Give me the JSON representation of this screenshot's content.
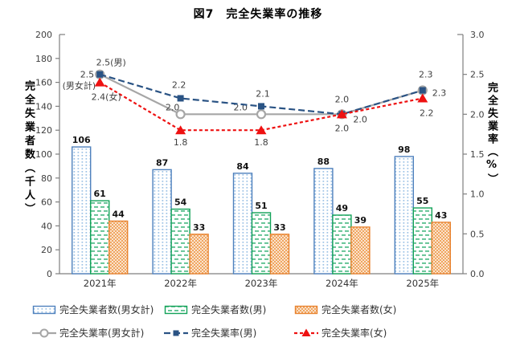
{
  "title": "図7　完全失業率の推移",
  "colors": {
    "axis": "#7f7f7f",
    "bar_total_border": "#4f81bd",
    "bar_total_fill": "#9cc2e5",
    "bar_male_border": "#12a258",
    "bar_male_fill": "#5abf8e",
    "bar_female_border": "#e8822e",
    "bar_female_fill": "#f0a158",
    "line_total": "#a6a6a6",
    "line_male": "#2a5384",
    "line_female": "#ee1111"
  },
  "chart_data": {
    "type": "bar",
    "subtype": "combo-bar-line",
    "categories": [
      "2021年",
      "2022年",
      "2023年",
      "2024年",
      "2025年"
    ],
    "bar_series": [
      {
        "name": "完全失業者数(男女計)",
        "axis": "left",
        "pattern": "dots",
        "border": "#4f81bd",
        "fill": "#9cc2e5",
        "values": [
          106,
          87,
          84,
          88,
          98
        ]
      },
      {
        "name": "完全失業者数(男)",
        "axis": "left",
        "pattern": "dashes",
        "border": "#12a258",
        "fill": "#5abf8e",
        "values": [
          61,
          54,
          51,
          49,
          55
        ]
      },
      {
        "name": "完全失業者数(女)",
        "axis": "left",
        "pattern": "cross",
        "border": "#e8822e",
        "fill": "#f0a158",
        "values": [
          44,
          33,
          33,
          39,
          43
        ]
      }
    ],
    "line_series": [
      {
        "name": "完全失業率(男女計)",
        "axis": "right",
        "color": "#a6a6a6",
        "marker": "circle",
        "dash": "solid",
        "values": [
          2.5,
          2.0,
          2.0,
          2.0,
          2.3
        ],
        "point_labels": [
          "2.5",
          "2.0",
          "2.0",
          "2.0",
          "2.3"
        ],
        "annotation": "(男女計)"
      },
      {
        "name": "完全失業率(男)",
        "axis": "right",
        "color": "#2a5384",
        "marker": "square",
        "dash": "long",
        "values": [
          2.5,
          2.2,
          2.1,
          2.0,
          2.3
        ],
        "point_labels": [
          "2.5(男)",
          "2.2",
          "2.1",
          "2.0",
          "2.3"
        ]
      },
      {
        "name": "完全失業率(女)",
        "axis": "right",
        "color": "#ee1111",
        "marker": "triangle",
        "dash": "short",
        "values": [
          2.4,
          1.8,
          1.8,
          2.0,
          2.2
        ],
        "point_labels": [
          "2.4(女)",
          "1.8",
          "1.8",
          "2.0",
          "2.2"
        ]
      }
    ],
    "left_axis": {
      "title": "完全失業者数（千人）",
      "min": 0,
      "max": 200,
      "step": 20,
      "tick_labels": [
        "0",
        "20",
        "40",
        "60",
        "80",
        "100",
        "120",
        "140",
        "160",
        "180",
        "200"
      ]
    },
    "right_axis": {
      "title": "完全失業率（%）",
      "min": 0,
      "max": 3.0,
      "step": 0.5,
      "tick_labels": [
        "0.0",
        "0.5",
        "1.0",
        "1.5",
        "2.0",
        "2.5",
        "3.0"
      ]
    },
    "grid": false,
    "legend_position": "bottom"
  }
}
